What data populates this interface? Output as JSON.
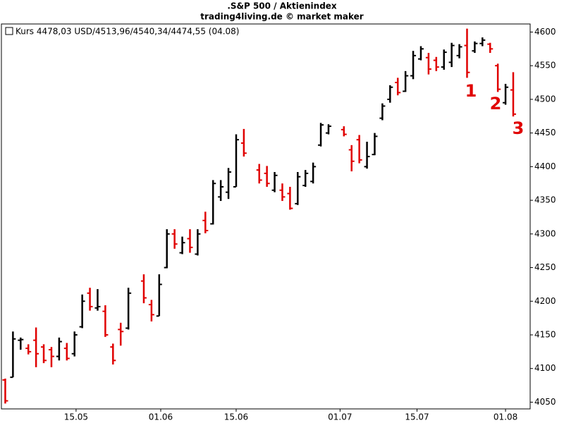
{
  "chart_data": {
    "type": "ohlc",
    "title": ".S&P 500 / Aktienindex",
    "subtitle": "trading4living.de © market maker",
    "legend": "Kurs 4478,03 USD/4513,96/4540,34/4474,55 (04.08)",
    "legend_position": "upper left",
    "annotations": [
      "1",
      "2",
      "3"
    ],
    "annotation_color": "#e00000",
    "up_color": "#000000",
    "down_color": "#e00000",
    "x": [
      0,
      1,
      2,
      3,
      4,
      5,
      6,
      7,
      8,
      9,
      10,
      11,
      12,
      13,
      14,
      15,
      16,
      18,
      19,
      20,
      21,
      22,
      23,
      24,
      25,
      26,
      27,
      28,
      29,
      30,
      31,
      33,
      34,
      35,
      36,
      37,
      38,
      39,
      40,
      41,
      42,
      44,
      45,
      46,
      47,
      48,
      49,
      50,
      51,
      52,
      53,
      54,
      55,
      56,
      57,
      58,
      59,
      60,
      61,
      62,
      63,
      64,
      65,
      66
    ],
    "open": [
      4083,
      4087,
      4142,
      4130,
      4142,
      4132,
      4128,
      4118,
      4130,
      4122,
      4162,
      4212,
      4190,
      4185,
      4132,
      4158,
      4160,
      4230,
      4195,
      4178,
      4250,
      4300,
      4272,
      4293,
      4270,
      4320,
      4315,
      4355,
      4362,
      4370,
      4435,
      4395,
      4390,
      4365,
      4365,
      4360,
      4345,
      4372,
      4378,
      4432,
      4450,
      4455,
      4425,
      4440,
      4400,
      4418,
      4472,
      4500,
      4525,
      4512,
      4535,
      4560,
      4562,
      4558,
      4548,
      4555,
      4565,
      4580,
      4572,
      4583,
      4582,
      4550,
      4495,
      4513.96
    ],
    "high": [
      4085,
      4155,
      4146,
      4136,
      4161,
      4136,
      4132,
      4146,
      4138,
      4155,
      4210,
      4220,
      4218,
      4194,
      4137,
      4168,
      4220,
      4240,
      4202,
      4240,
      4307,
      4307,
      4296,
      4307,
      4307,
      4333,
      4380,
      4380,
      4398,
      4448,
      4456,
      4404,
      4401,
      4392,
      4375,
      4370,
      4392,
      4395,
      4406,
      4465,
      4463,
      4460,
      4432,
      4447,
      4437,
      4450,
      4494,
      4521,
      4532,
      4542,
      4572,
      4579,
      4569,
      4563,
      4574,
      4584,
      4582,
      4605,
      4586,
      4592,
      4584,
      4553,
      4523,
      4540.34
    ],
    "low": [
      4048,
      4087,
      4128,
      4121,
      4102,
      4108,
      4102,
      4112,
      4112,
      4118,
      4160,
      4186,
      4186,
      4147,
      4106,
      4134,
      4158,
      4197,
      4170,
      4178,
      4249,
      4278,
      4270,
      4272,
      4268,
      4301,
      4314,
      4349,
      4352,
      4370,
      4415,
      4375,
      4370,
      4362,
      4349,
      4336,
      4343,
      4370,
      4375,
      4430,
      4448,
      4445,
      4393,
      4405,
      4397,
      4417,
      4469,
      4495,
      4506,
      4511,
      4530,
      4558,
      4537,
      4542,
      4544,
      4548,
      4561,
      4532,
      4569,
      4579,
      4569,
      4511,
      4492,
      4474.55
    ],
    "close": [
      4052,
      4144,
      4143,
      4125,
      4122,
      4112,
      4118,
      4140,
      4115,
      4150,
      4200,
      4192,
      4192,
      4150,
      4112,
      4155,
      4212,
      4205,
      4180,
      4225,
      4300,
      4285,
      4287,
      4280,
      4300,
      4305,
      4375,
      4370,
      4392,
      4440,
      4420,
      4380,
      4375,
      4387,
      4355,
      4338,
      4385,
      4390,
      4400,
      4462,
      4460,
      4448,
      4408,
      4410,
      4415,
      4445,
      4490,
      4518,
      4510,
      4535,
      4565,
      4575,
      4545,
      4548,
      4570,
      4580,
      4578,
      4540,
      4583,
      4588,
      4575,
      4515,
      4518,
      4478.03
    ],
    "xlim": [
      -0.5,
      68.2
    ],
    "xticks": [
      {
        "value": 9.2,
        "label": "15.05"
      },
      {
        "value": 20.2,
        "label": "01.06"
      },
      {
        "value": 30,
        "label": "15.06"
      },
      {
        "value": 43.5,
        "label": "01.07"
      },
      {
        "value": 53.5,
        "label": "15.07"
      },
      {
        "value": 65,
        "label": "01.08"
      }
    ],
    "ylim": [
      4040,
      4612
    ],
    "yticks": [
      4050,
      4100,
      4150,
      4200,
      4250,
      4300,
      4350,
      4400,
      4450,
      4500,
      4550,
      4600
    ]
  }
}
